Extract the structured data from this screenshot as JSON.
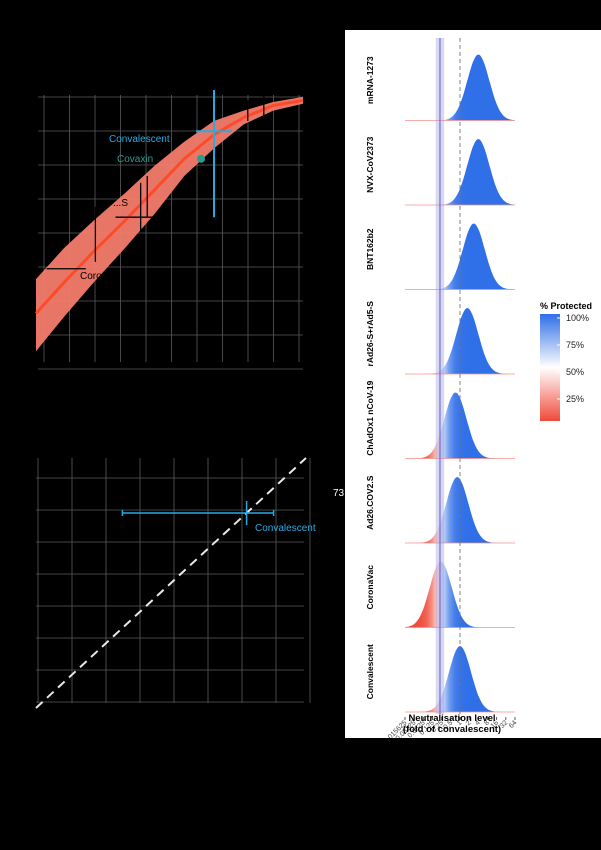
{
  "efficacy_panel": {
    "labels": {
      "convalescent": "Convalescent",
      "covaxin": "Covaxin",
      "ad26_partial": "...S",
      "corona_partial": "Coro"
    },
    "colors": {
      "band": "#f47c6c",
      "line": "#ff4a2a",
      "label": "#29abe2",
      "covaxin": "#2a9d8f"
    }
  },
  "scatter_panel": {
    "labels": {
      "convalescent": "Convalescent",
      "edge_text": "73"
    }
  },
  "chart_data": [
    {
      "type": "area",
      "title": "",
      "xlabel": "",
      "ylabel": "",
      "x_scale": "log2",
      "xlim": [
        0.0156,
        8
      ],
      "ylim": [
        0.2,
        1.0
      ],
      "grid": true,
      "curve": {
        "x": [
          0.0156,
          0.03,
          0.06,
          0.125,
          0.25,
          0.5,
          1,
          2,
          4,
          8
        ],
        "y": [
          0.35,
          0.44,
          0.53,
          0.62,
          0.71,
          0.8,
          0.87,
          0.92,
          0.955,
          0.97
        ],
        "lower": [
          0.24,
          0.34,
          0.44,
          0.54,
          0.64,
          0.75,
          0.83,
          0.9,
          0.94,
          0.96
        ],
        "upper": [
          0.45,
          0.54,
          0.62,
          0.7,
          0.78,
          0.85,
          0.91,
          0.94,
          0.965,
          0.98
        ]
      },
      "points": [
        {
          "label": "Convalescent",
          "x": 1,
          "y": 0.88,
          "x_lo": 1,
          "x_hi": 1,
          "y_lo": 0.63,
          "y_hi": 1.0
        },
        {
          "label": "Covaxin",
          "x": 1,
          "y": 0.8
        }
      ]
    },
    {
      "type": "scatter",
      "title": "",
      "xlabel": "",
      "ylabel": "",
      "identity_line": true,
      "grid": true,
      "points": [
        {
          "label": "Convalescent",
          "x": 0.78,
          "y": 0.78,
          "x_lo": 0.32,
          "x_hi": 0.88
        }
      ]
    },
    {
      "type": "area",
      "subtype": "ridgeline",
      "xlabel": "Neutralisation level\n(fold of convalescent)",
      "x_scale": "log2",
      "x_ticks": [
        "0.015625",
        "0.03125",
        "0.0625",
        "0.125",
        "0.25",
        "0.5",
        "1",
        "2",
        "4",
        "8",
        "16",
        "32",
        "64"
      ],
      "reference_line_x": 1,
      "threshold_band_x": [
        0.2,
        0.24
      ],
      "series": [
        {
          "name": "mRNA-1273",
          "mean_log2": 2.0,
          "sd_log2": 1.2
        },
        {
          "name": "NVX-CoV2373",
          "mean_log2": 2.0,
          "sd_log2": 1.2
        },
        {
          "name": "BNT162b2",
          "mean_log2": 1.5,
          "sd_log2": 1.2
        },
        {
          "name": "rAd26-S+rAd5-S",
          "mean_log2": 0.8,
          "sd_log2": 1.2
        },
        {
          "name": "ChAdOx1 nCoV-19",
          "mean_log2": -0.5,
          "sd_log2": 1.2
        },
        {
          "name": "Ad26.COV2.S",
          "mean_log2": -0.3,
          "sd_log2": 1.2
        },
        {
          "name": "CoronaVac",
          "mean_log2": -2.1,
          "sd_log2": 1.2
        },
        {
          "name": "Convalescent",
          "mean_log2": 0.0,
          "sd_log2": 1.2
        }
      ],
      "legend": {
        "title": "% Protected",
        "position": "right",
        "stops": [
          "100%",
          "75%",
          "50%",
          "25%"
        ],
        "colors": {
          "high": "#2f6fe8",
          "mid": "#ffffff",
          "low": "#f04a3a"
        }
      }
    }
  ]
}
